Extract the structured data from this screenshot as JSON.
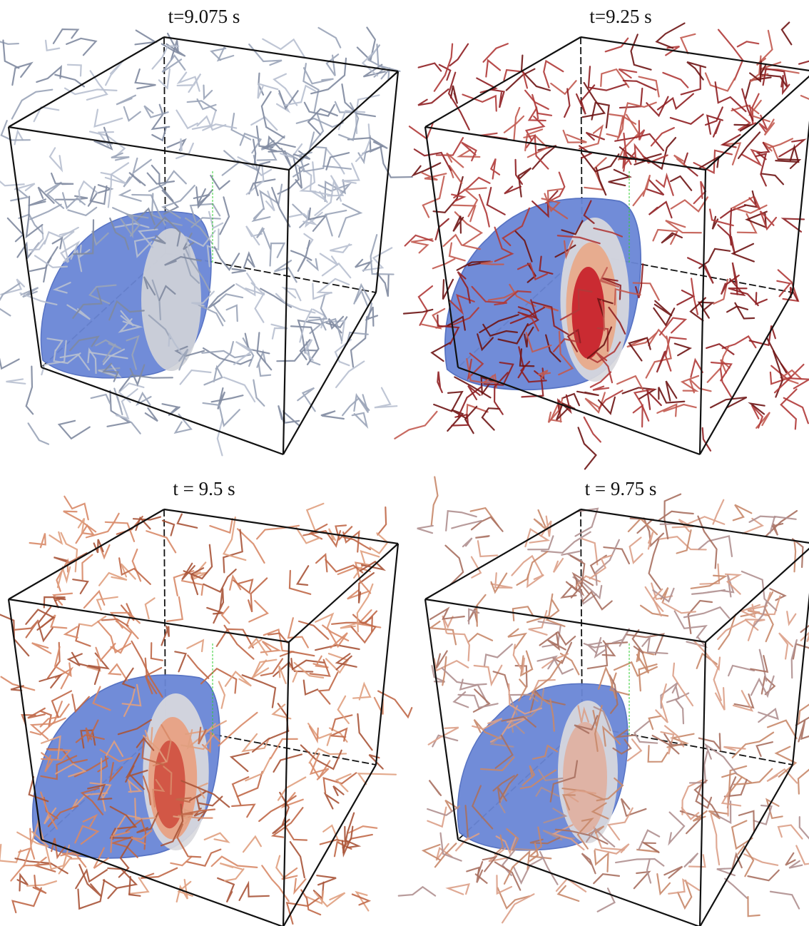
{
  "panels": [
    {
      "title": "t=9.075 s"
    },
    {
      "title": "t=9.25 s"
    },
    {
      "title": "t = 9.5 s"
    },
    {
      "title": "t = 9.75 s"
    }
  ]
}
